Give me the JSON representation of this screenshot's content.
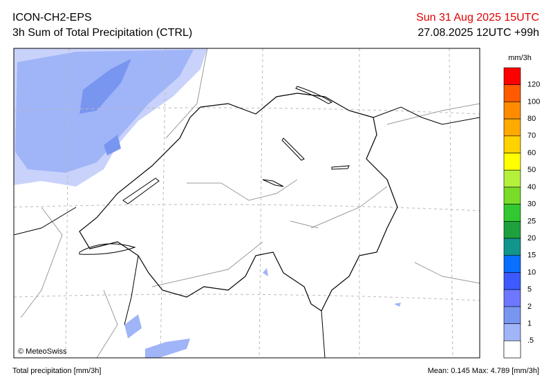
{
  "header": {
    "model": "ICON-CH2-EPS",
    "product": "3h Sum of Total Precipitation (CTRL)",
    "valid_time": "Sun 31 Aug 2025 15UTC",
    "run_time": "27.08.2025 12UTC +99h"
  },
  "legend": {
    "unit": "mm/3h",
    "top_color": "#ff0000",
    "items": [
      {
        "label": "120",
        "color": "#ff5a00"
      },
      {
        "label": "100",
        "color": "#ff8c00"
      },
      {
        "label": "80",
        "color": "#ffaa00"
      },
      {
        "label": "70",
        "color": "#ffd200"
      },
      {
        "label": "60",
        "color": "#ffff00"
      },
      {
        "label": "50",
        "color": "#b4f03c"
      },
      {
        "label": "40",
        "color": "#78dc28"
      },
      {
        "label": "30",
        "color": "#32c832"
      },
      {
        "label": "25",
        "color": "#1ea03c"
      },
      {
        "label": "20",
        "color": "#12968c"
      },
      {
        "label": "15",
        "color": "#0a6eff"
      },
      {
        "label": "10",
        "color": "#3c5aff"
      },
      {
        "label": "5",
        "color": "#6e78ff"
      },
      {
        "label": "2",
        "color": "#7896f0"
      },
      {
        "label": "1",
        "color": "#a0b4f8"
      },
      {
        "label": ".5",
        "color": "#c8d2fa"
      }
    ],
    "bottom_color": "#ffffff"
  },
  "map": {
    "credit": "© MeteoSwiss"
  },
  "footer": {
    "variable": "Total precipitation [mm/3h]",
    "stats": "Mean:  0.145 Max:  4.789 [mm/3h]"
  }
}
